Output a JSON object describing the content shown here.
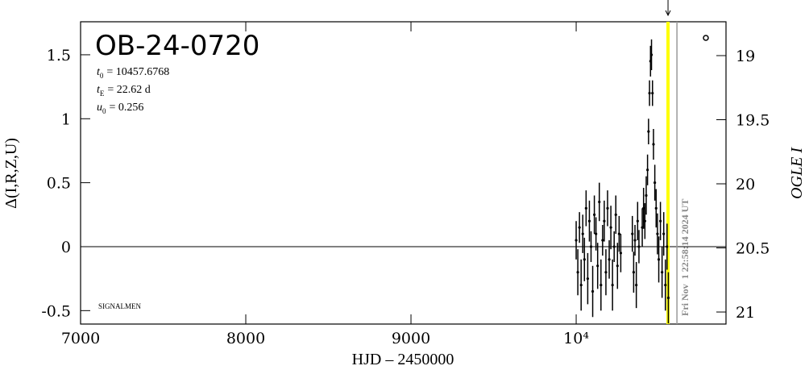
{
  "chart_data": {
    "type": "scatter",
    "title": "OB-24-0720",
    "params": [
      {
        "symbol": "t",
        "sub": "0",
        "text": "= 10457.6768"
      },
      {
        "symbol": "t",
        "sub": "E",
        "text": "= 22.62 d"
      },
      {
        "symbol": "u",
        "sub": "0",
        "text": "= 0.256"
      }
    ],
    "credit": "SIGNALMEN",
    "xlabel": "HJD – 2450000",
    "ylabel": "Δ(I,R,Z,U)",
    "y2label": "OGLE I",
    "timestamp": "Fri Nov  1 22:58:14 2024 UT",
    "xlim": [
      7000,
      10907
    ],
    "ylim": [
      -0.605,
      1.758
    ],
    "y2lim": [
      18.736,
      21.094
    ],
    "xticks": [
      7000,
      8000,
      9000,
      {
        "value": 10000,
        "label": "10⁴"
      }
    ],
    "yticks": [
      -0.5,
      0,
      0.5,
      1,
      1.5
    ],
    "y2ticks": [
      19,
      19.5,
      20,
      20.5,
      21
    ],
    "hline": 0,
    "vlines": [
      {
        "x": 10556,
        "color": "#ffff00"
      },
      {
        "x": 10610,
        "color": "#999999"
      }
    ],
    "series": [
      {
        "name": "OGLE",
        "color": "#000000",
        "x": [
          10000,
          10010,
          10020,
          10030,
          10040,
          10050,
          10060,
          10070,
          10080,
          10090,
          10100,
          10110,
          10120,
          10130,
          10140,
          10150,
          10160,
          10170,
          10180,
          10190,
          10200,
          10210,
          10220,
          10230,
          10240,
          10250,
          10260,
          10270,
          10340,
          10348,
          10356,
          10364,
          10372,
          10380,
          10400,
          10408,
          10416,
          10424,
          10432,
          10438,
          10444,
          10450,
          10456,
          10462,
          10468,
          10476,
          10484,
          10492,
          10500,
          10510,
          10520,
          10530,
          10540,
          10550,
          10558
        ],
        "values": [
          0.05,
          -0.2,
          0.15,
          -0.3,
          0.1,
          -0.1,
          0.3,
          -0.25,
          0.2,
          0.0,
          -0.35,
          0.25,
          0.1,
          -0.15,
          0.35,
          -0.3,
          0.05,
          0.2,
          -0.2,
          0.3,
          -0.1,
          0.15,
          -0.3,
          0.0,
          0.25,
          -0.15,
          0.1,
          -0.05,
          0.1,
          -0.2,
          0.05,
          -0.3,
          0.2,
          0.0,
          0.15,
          0.3,
          0.2,
          0.4,
          0.6,
          0.9,
          1.2,
          1.45,
          1.5,
          1.2,
          0.8,
          0.5,
          0.3,
          0.1,
          -0.1,
          0.2,
          -0.2,
          0.1,
          -0.3,
          0.0,
          -0.4
        ],
        "errors": [
          0.15,
          0.18,
          0.12,
          0.2,
          0.15,
          0.17,
          0.14,
          0.2,
          0.16,
          0.12,
          0.2,
          0.15,
          0.13,
          0.18,
          0.15,
          0.2,
          0.12,
          0.16,
          0.18,
          0.14,
          0.15,
          0.17,
          0.2,
          0.12,
          0.15,
          0.18,
          0.14,
          0.15,
          0.14,
          0.16,
          0.12,
          0.18,
          0.15,
          0.13,
          0.15,
          0.16,
          0.14,
          0.15,
          0.12,
          0.1,
          0.1,
          0.12,
          0.12,
          0.1,
          0.12,
          0.14,
          0.15,
          0.16,
          0.18,
          0.15,
          0.2,
          0.17,
          0.2,
          0.18,
          0.2
        ]
      }
    ]
  }
}
